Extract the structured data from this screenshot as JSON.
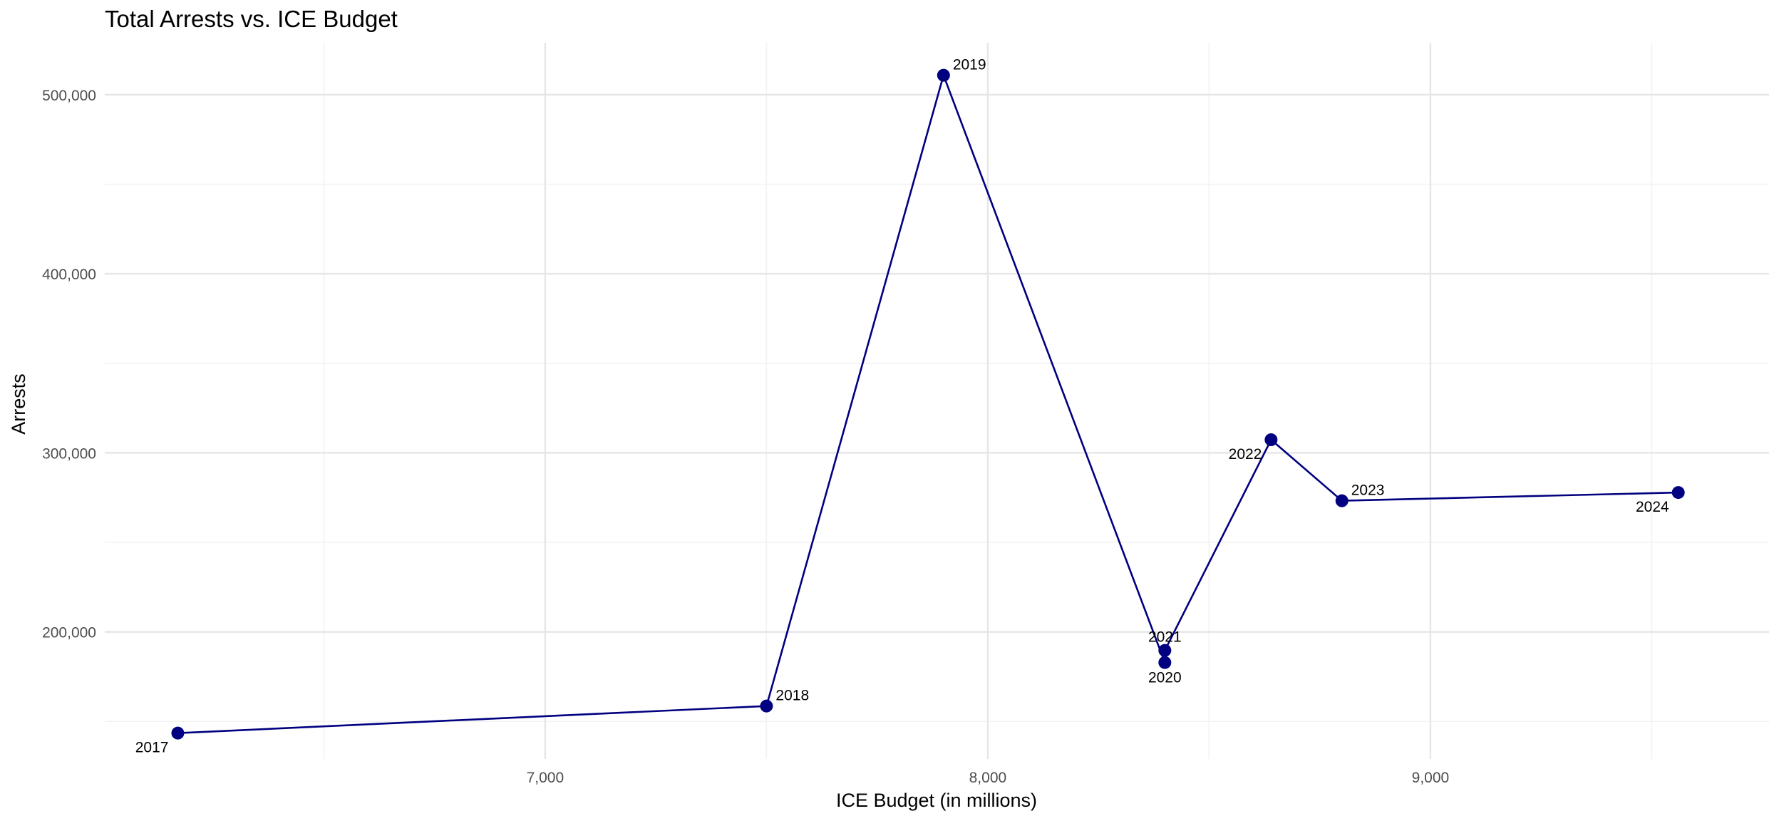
{
  "chart_data": {
    "type": "line",
    "title": "Total Arrests vs. ICE Budget",
    "xlabel": "ICE Budget (in millions)",
    "ylabel": "Arrests",
    "xlim": [
      6005,
      9765
    ],
    "ylim": [
      129000,
      529000
    ],
    "x_ticks": [
      7000,
      8000,
      9000
    ],
    "x_tick_labels": [
      "7,000",
      "8,000",
      "9,000"
    ],
    "x_minor_ticks": [
      6500,
      7500,
      8500,
      9500
    ],
    "y_ticks": [
      200000,
      300000,
      400000,
      500000
    ],
    "y_tick_labels": [
      "200,000",
      "300,000",
      "400,000",
      "500,000"
    ],
    "y_minor_ticks": [
      150000,
      250000,
      350000,
      450000
    ],
    "grid": true,
    "series": [
      {
        "color": "#000080",
        "points": [
          {
            "year": "2017",
            "x": 6170,
            "y": 143470,
            "label_pos": "below-left"
          },
          {
            "year": "2018",
            "x": 7500,
            "y": 158581,
            "label_pos": "above-right"
          },
          {
            "year": "2019",
            "x": 7900,
            "y": 510854,
            "label_pos": "above-right"
          },
          {
            "year": "2020",
            "x": 8400,
            "y": 182870,
            "label_pos": "below"
          },
          {
            "year": "2021",
            "x": 8400,
            "y": 189633,
            "label_pos": "above"
          },
          {
            "year": "2022",
            "x": 8640,
            "y": 307296,
            "label_pos": "below-left"
          },
          {
            "year": "2023",
            "x": 8800,
            "y": 273220,
            "label_pos": "above-right"
          },
          {
            "year": "2024",
            "x": 9560,
            "y": 277826,
            "label_pos": "below-left"
          }
        ]
      }
    ]
  }
}
